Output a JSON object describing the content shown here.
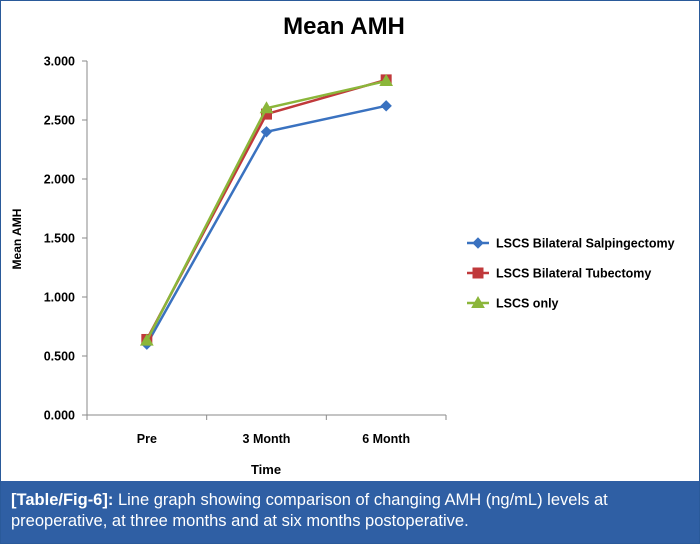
{
  "chart_data": {
    "type": "line",
    "title": "Mean AMH",
    "xlabel": "Time",
    "ylabel": "Mean AMH",
    "categories": [
      "Pre",
      "3 Month",
      "6 Month"
    ],
    "ylim": [
      0,
      3
    ],
    "ytick_labels": [
      "0.000",
      "0.500",
      "1.000",
      "1.500",
      "2.000",
      "2.500",
      "3.000"
    ],
    "grid": false,
    "legend_position": "right",
    "series": [
      {
        "name": "LSCS Bilateral Salpingectomy",
        "values": [
          0.6,
          2.4,
          2.62
        ],
        "color": "#3a72c0",
        "marker": "diamond"
      },
      {
        "name": "LSCS Bilateral Tubectomy",
        "values": [
          0.64,
          2.55,
          2.84
        ],
        "color": "#c0393b",
        "marker": "square"
      },
      {
        "name": "LSCS only",
        "values": [
          0.63,
          2.6,
          2.83
        ],
        "color": "#8bb63a",
        "marker": "triangle"
      }
    ]
  },
  "caption": {
    "label": "[Table/Fig-6]:",
    "text": " Line graph showing comparison of changing AMH (ng/mL) levels at preoperative, at three months and at six months postoperative."
  },
  "colors": {
    "caption_background": "#2f5fa4",
    "frame_border": "#2a5a9a",
    "axis": "#8a8a8a"
  }
}
